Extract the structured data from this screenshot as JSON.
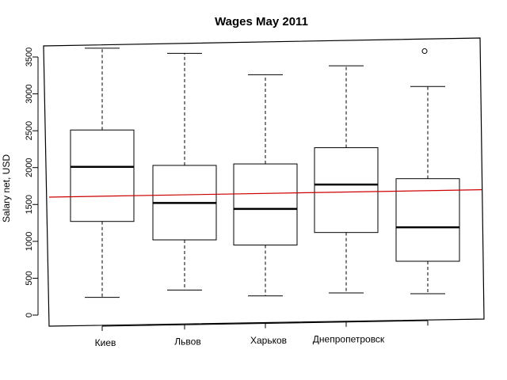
{
  "chart_data": {
    "type": "box",
    "title": "Wages May 2011",
    "ylabel": "Salary net, USD",
    "xlabel": "",
    "ylim": [
      0,
      3650
    ],
    "yticks": [
      0,
      500,
      1000,
      1500,
      2000,
      2500,
      3000,
      3500
    ],
    "categories": [
      "Киев",
      "Львов",
      "Харьков",
      "Днепропетровск",
      ""
    ],
    "boxes": [
      {
        "whisker_low": 240,
        "q1": 1270,
        "median": 2010,
        "q3": 2510,
        "whisker_high": 3620,
        "outliers": []
      },
      {
        "whisker_low": 340,
        "q1": 1020,
        "median": 1520,
        "q3": 2030,
        "whisker_high": 3550,
        "outliers": []
      },
      {
        "whisker_low": 260,
        "q1": 950,
        "median": 1440,
        "q3": 2050,
        "whisker_high": 3260,
        "outliers": []
      },
      {
        "whisker_low": 300,
        "q1": 1120,
        "median": 1770,
        "q3": 2270,
        "whisker_high": 3380,
        "outliers": []
      },
      {
        "whisker_low": 290,
        "q1": 730,
        "median": 1190,
        "q3": 1850,
        "whisker_high": 3100,
        "outliers": [
          3580
        ]
      }
    ],
    "reference_line": {
      "start": 1600,
      "end": 1700,
      "color": "#cc0000"
    },
    "grid": false,
    "legend": "none"
  }
}
